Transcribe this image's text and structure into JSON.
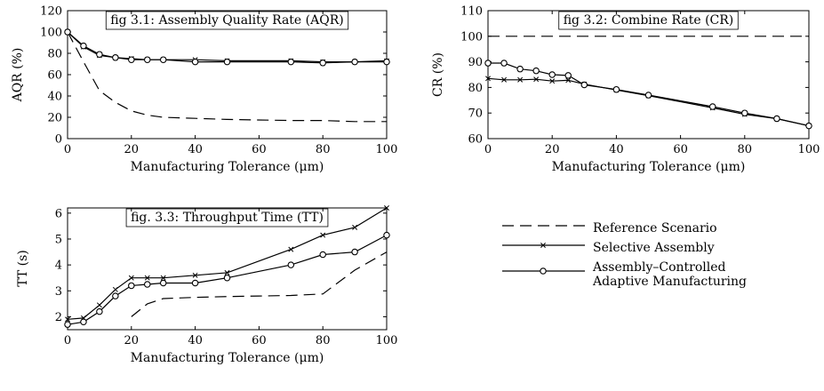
{
  "chart_data": [
    {
      "type": "line",
      "title": "fig 3.1: Assembly Quality Rate (AQR)",
      "xlabel": "Manufacturing Tolerance (μm)",
      "ylabel": "AQR (%)",
      "xlim": [
        0,
        100
      ],
      "ylim": [
        0,
        120
      ],
      "xticks": [
        0,
        20,
        40,
        60,
        80,
        100
      ],
      "yticks": [
        0,
        20,
        40,
        60,
        80,
        100,
        120
      ],
      "series": [
        {
          "name": "Reference Scenario",
          "style": "dashed",
          "x": [
            0,
            5,
            10,
            15,
            20,
            25,
            30,
            40,
            50,
            70,
            80,
            90,
            100
          ],
          "y": [
            100,
            72,
            45,
            34,
            26,
            22,
            20,
            19,
            18,
            17,
            17,
            16,
            16
          ]
        },
        {
          "name": "Selective Assembly",
          "style": "solid-cross",
          "x": [
            0,
            5,
            10,
            15,
            20,
            25,
            30,
            40,
            50,
            70,
            80,
            90,
            100
          ],
          "y": [
            100,
            86,
            78,
            76,
            75,
            74,
            74,
            74,
            73,
            73,
            72,
            72,
            73
          ]
        },
        {
          "name": "Assembly–Controlled Adaptive Manufacturing",
          "style": "solid-circle",
          "x": [
            0,
            5,
            10,
            15,
            20,
            25,
            30,
            40,
            50,
            70,
            80,
            90,
            100
          ],
          "y": [
            100,
            87,
            79,
            76,
            74,
            74,
            74,
            72,
            72,
            72,
            71,
            72,
            72
          ]
        }
      ]
    },
    {
      "type": "line",
      "title": "fig 3.2: Combine Rate (CR)",
      "xlabel": "Manufacturing Tolerance (μm)",
      "ylabel": "CR (%)",
      "xlim": [
        0,
        100
      ],
      "ylim": [
        60,
        110
      ],
      "xticks": [
        0,
        20,
        40,
        60,
        80,
        100
      ],
      "yticks": [
        60,
        70,
        80,
        90,
        100,
        110
      ],
      "series": [
        {
          "name": "Reference Scenario",
          "style": "dashed",
          "x": [
            0,
            100
          ],
          "y": [
            100,
            100
          ]
        },
        {
          "name": "Selective Assembly",
          "style": "solid-cross",
          "x": [
            0,
            5,
            10,
            15,
            20,
            25,
            30,
            40,
            50,
            70,
            80,
            90,
            100
          ],
          "y": [
            83.5,
            83,
            83,
            83.2,
            82.5,
            82.8,
            81.3,
            79,
            76.8,
            72,
            69.5,
            67.8,
            65
          ]
        },
        {
          "name": "Assembly–Controlled Adaptive Manufacturing",
          "style": "solid-circle",
          "x": [
            0,
            5,
            10,
            15,
            20,
            25,
            30,
            40,
            50,
            70,
            80,
            90,
            100
          ],
          "y": [
            89.5,
            89.5,
            87.2,
            86.5,
            85,
            84.7,
            81,
            79.2,
            77,
            72.5,
            70,
            67.8,
            65
          ]
        }
      ]
    },
    {
      "type": "line",
      "title": "fig. 3.3: Throughput Time (TT)",
      "xlabel": "Manufacturing Tolerance (μm)",
      "ylabel": "TT (s)",
      "xlim": [
        0,
        100
      ],
      "ylim": [
        1.5,
        6.2
      ],
      "xticks": [
        0,
        20,
        40,
        60,
        80,
        100
      ],
      "yticks": [
        2,
        3,
        4,
        5,
        6
      ],
      "series": [
        {
          "name": "Reference Scenario",
          "style": "dashed",
          "x": [
            20,
            25,
            30,
            40,
            50,
            60,
            70,
            80,
            90,
            100
          ],
          "y": [
            2.0,
            2.5,
            2.7,
            2.75,
            2.78,
            2.8,
            2.82,
            2.88,
            3.8,
            4.5
          ]
        },
        {
          "name": "Selective Assembly",
          "style": "solid-cross",
          "x": [
            0,
            5,
            10,
            15,
            20,
            25,
            30,
            40,
            50,
            70,
            80,
            90,
            100
          ],
          "y": [
            1.9,
            1.95,
            2.45,
            3.05,
            3.5,
            3.5,
            3.5,
            3.6,
            3.7,
            4.6,
            5.15,
            5.45,
            6.2
          ]
        },
        {
          "name": "Assembly–Controlled Adaptive Manufacturing",
          "style": "solid-circle",
          "x": [
            0,
            5,
            10,
            15,
            20,
            25,
            30,
            40,
            50,
            70,
            80,
            90,
            100
          ],
          "y": [
            1.7,
            1.8,
            2.2,
            2.8,
            3.2,
            3.25,
            3.3,
            3.3,
            3.5,
            4.0,
            4.4,
            4.5,
            5.15
          ]
        }
      ]
    }
  ],
  "legend": {
    "items": [
      {
        "style": "dashed",
        "label": "Reference Scenario"
      },
      {
        "style": "solid-cross",
        "label": "Selective Assembly"
      },
      {
        "style": "solid-circle",
        "label": "Assembly–Controlled",
        "label2": "Adaptive Manufacturing"
      }
    ]
  }
}
